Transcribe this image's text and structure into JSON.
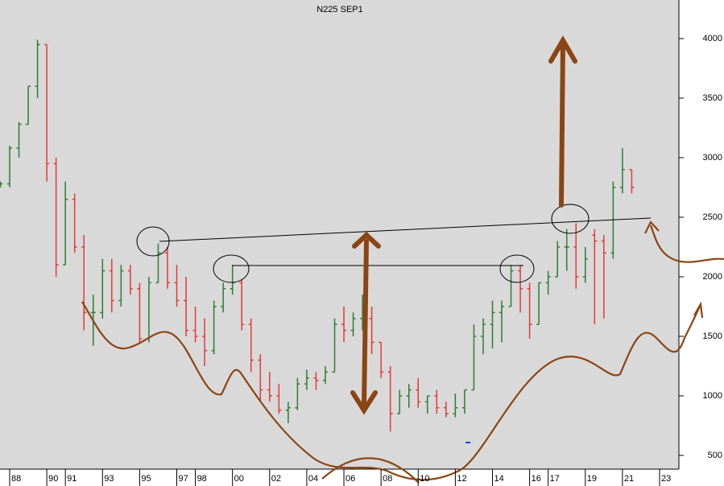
{
  "chart_data": {
    "type": "ohlc",
    "title": "N225 SEP1",
    "x": [
      1987.5,
      1988,
      1988.5,
      1989,
      1989.5,
      1990,
      1990.5,
      1991,
      1991.5,
      1992,
      1992.5,
      1993,
      1993.5,
      1994,
      1994.5,
      1995,
      1995.5,
      1996,
      1996.5,
      1997,
      1997.5,
      1998,
      1998.5,
      1999,
      1999.5,
      2000,
      2000.5,
      2001,
      2001.5,
      2002,
      2002.5,
      2003,
      2003.5,
      2004,
      2004.5,
      2005,
      2005.5,
      2006,
      2006.5,
      2007,
      2007.5,
      2008,
      2008.5,
      2009,
      2009.5,
      2010,
      2010.5,
      2011,
      2011.5,
      2012,
      2012.5,
      2013,
      2013.5,
      2014,
      2014.5,
      2015,
      2015.5,
      2016,
      2016.5,
      2017,
      2017.5,
      2018,
      2018.5,
      2019,
      2019.5,
      2020,
      2020.5,
      2021,
      2021.5
    ],
    "open": [
      2750,
      2780,
      3080,
      3280,
      3600,
      3950,
      2950,
      2100,
      2650,
      2250,
      1700,
      1700,
      2050,
      1800,
      2050,
      1900,
      1480,
      1950,
      2200,
      1950,
      1800,
      1550,
      1500,
      1380,
      1750,
      1900,
      1950,
      1600,
      1300,
      1050,
      1000,
      880,
      900,
      1100,
      1150,
      1130,
      1200,
      1600,
      1550,
      1650,
      1650,
      1450,
      1200,
      850,
      1000,
      1050,
      950,
      1000,
      900,
      850,
      900,
      1050,
      1500,
      1600,
      1700,
      1750,
      2050,
      1900,
      1600,
      1950,
      2000,
      2250,
      2250,
      2000,
      2350,
      2300,
      2200,
      2750,
      2900
    ],
    "high": [
      2800,
      3100,
      3300,
      3600,
      3990,
      3950,
      3000,
      2800,
      2700,
      2350,
      1850,
      2150,
      2150,
      2100,
      2100,
      1950,
      2000,
      2280,
      2250,
      2100,
      2000,
      1750,
      1650,
      1800,
      1950,
      2100,
      1980,
      1650,
      1350,
      1200,
      1100,
      950,
      1150,
      1220,
      1200,
      1250,
      1650,
      1750,
      1700,
      1850,
      1750,
      1450,
      1250,
      1050,
      1100,
      1150,
      1000,
      1050,
      950,
      1020,
      1050,
      1600,
      1650,
      1800,
      1800,
      2100,
      2100,
      1950,
      1950,
      2050,
      2300,
      2400,
      2450,
      2250,
      2400,
      2350,
      2800,
      3080,
      2900
    ],
    "low": [
      2750,
      2750,
      3000,
      3280,
      3500,
      2800,
      2000,
      2100,
      2200,
      1550,
      1420,
      1650,
      1700,
      1750,
      1850,
      1450,
      1450,
      1950,
      1900,
      1750,
      1500,
      1450,
      1250,
      1350,
      1700,
      1850,
      1550,
      1200,
      950,
      950,
      850,
      770,
      880,
      1050,
      1050,
      1100,
      1200,
      1450,
      1500,
      1550,
      1350,
      1150,
      700,
      850,
      900,
      900,
      850,
      850,
      820,
      820,
      850,
      1050,
      1350,
      1400,
      1450,
      1750,
      1700,
      1480,
      1600,
      1850,
      2000,
      2050,
      1900,
      1950,
      1600,
      1650,
      2150,
      2700,
      2700
    ],
    "close": [
      2780,
      3080,
      3280,
      3600,
      3950,
      2950,
      2100,
      2650,
      2250,
      1700,
      1700,
      2050,
      1800,
      2050,
      1900,
      1480,
      1950,
      2200,
      1950,
      1800,
      1550,
      1500,
      1380,
      1750,
      1900,
      1950,
      1600,
      1300,
      1050,
      1000,
      880,
      900,
      1100,
      1150,
      1130,
      1200,
      1600,
      1550,
      1650,
      1650,
      1450,
      1200,
      850,
      1000,
      1050,
      950,
      1000,
      900,
      850,
      900,
      1050,
      1500,
      1600,
      1700,
      1750,
      2050,
      1900,
      1600,
      1950,
      2000,
      2250,
      2250,
      2000,
      2150,
      2300,
      2200,
      2750,
      2900,
      2750
    ],
    "up_color": "#2e7d32",
    "down_color": "#e53935",
    "xlim": [
      1987.48,
      2024.04
    ],
    "ylim": [
      385,
      4324
    ],
    "xticks": [
      {
        "value": 1988,
        "label": "88"
      },
      {
        "value": 1990,
        "label": "90"
      },
      {
        "value": 1991,
        "label": "91"
      },
      {
        "value": 1993,
        "label": "93"
      },
      {
        "value": 1995,
        "label": "95"
      },
      {
        "value": 1997,
        "label": "97"
      },
      {
        "value": 1998,
        "label": "98"
      },
      {
        "value": 2000,
        "label": "00"
      },
      {
        "value": 2002,
        "label": "02"
      },
      {
        "value": 2004,
        "label": "04"
      },
      {
        "value": 2006,
        "label": "06"
      },
      {
        "value": 2008,
        "label": "08"
      },
      {
        "value": 2010,
        "label": "10"
      },
      {
        "value": 2012,
        "label": "12"
      },
      {
        "value": 2014,
        "label": "14"
      },
      {
        "value": 2016,
        "label": "16"
      },
      {
        "value": 2017,
        "label": "17"
      },
      {
        "value": 2019,
        "label": "19"
      },
      {
        "value": 2021,
        "label": "21"
      },
      {
        "value": 2023,
        "label": "23"
      }
    ],
    "yticks": [
      500,
      1000,
      1500,
      2000,
      2500,
      3000,
      3500,
      4000
    ]
  }
}
